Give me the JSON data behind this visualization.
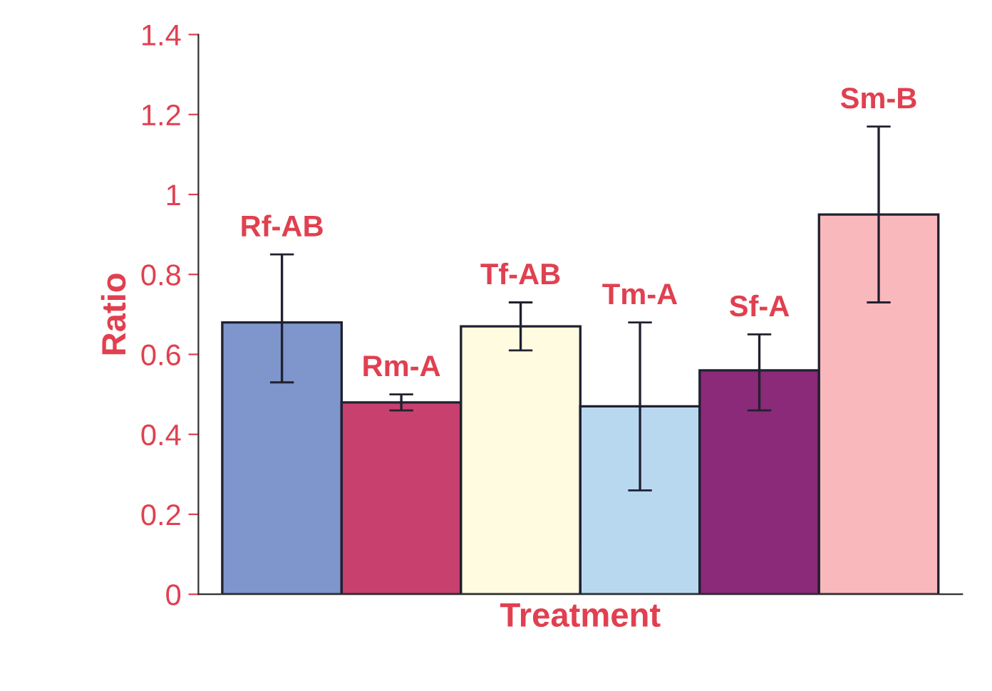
{
  "chart_data": {
    "type": "bar",
    "xlabel": "Treatment",
    "ylabel": "Ratio",
    "categories": [
      "Rf-AB",
      "Rm-A",
      "Tf-AB",
      "Tm-A",
      "Sf-A",
      "Sm-B"
    ],
    "values": [
      0.68,
      0.48,
      0.67,
      0.47,
      0.56,
      0.95
    ],
    "colors": [
      "#7f96cc",
      "#c8406e",
      "#fffbe0",
      "#b8d8f0",
      "#8a2a78",
      "#f8b8bc"
    ],
    "errors": [
      [
        0.53,
        0.85
      ],
      [
        0.46,
        0.5
      ],
      [
        0.61,
        0.73
      ],
      [
        0.26,
        0.68
      ],
      [
        0.46,
        0.65
      ],
      [
        0.73,
        1.17
      ]
    ],
    "ylim": [
      0,
      1.4
    ],
    "yticks": [
      0,
      0.2,
      0.4,
      0.6,
      0.8,
      1,
      1.2,
      1.4
    ],
    "grid": false
  }
}
